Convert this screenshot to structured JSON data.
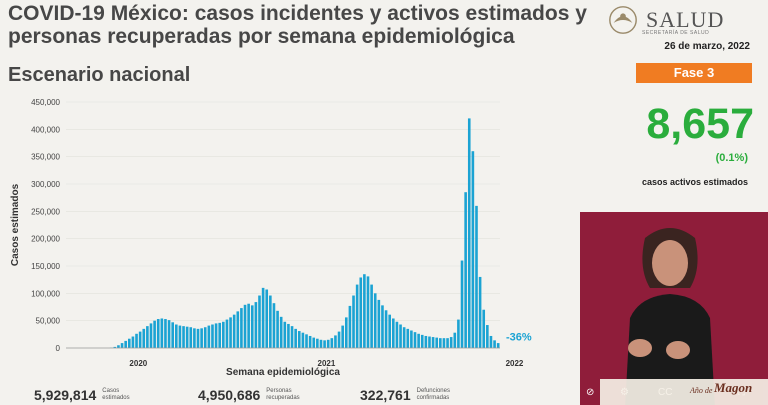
{
  "header": {
    "title": "COVID-19 México: casos incidentes y activos estimados y personas recuperadas por semana epidemiológica",
    "subtitle": "Escenario nacional"
  },
  "logo": {
    "text": "SALUD",
    "subtext": "SECRETARÍA DE SALUD"
  },
  "sidebar": {
    "date": "26 de marzo, 2022",
    "phase": "Fase 3",
    "active_cases": "8,657",
    "active_pct": "(0.1%)",
    "active_caption": "casos activos estimados"
  },
  "footer": {
    "stats": [
      {
        "value": "5,929,814",
        "label": "Casos estimados"
      },
      {
        "value": "4,950,686",
        "label": "Personas recuperadas"
      },
      {
        "value": "322,761",
        "label": "Defunciones confirmadas"
      }
    ],
    "banner_pre": "Año de",
    "banner_main": "Magon"
  },
  "colors": {
    "bar": "#1ba3d3",
    "accent_green": "#2aad3c",
    "phase_orange": "#f07c22",
    "video_bg": "#8f1d3a"
  },
  "chart_data": {
    "type": "bar",
    "xlabel": "Semana epidemiológica",
    "ylabel": "Casos estimados",
    "ylim": [
      0,
      450000
    ],
    "yticks": [
      "0",
      "50,000",
      "100,000",
      "150,000",
      "200,000",
      "250,000",
      "300,000",
      "350,000",
      "400,000",
      "450,000"
    ],
    "year_labels": [
      {
        "label": "2020",
        "index": 20
      },
      {
        "label": "2021",
        "index": 72
      },
      {
        "label": "2022",
        "index": 124
      }
    ],
    "annotation": "-36%",
    "values": [
      0,
      0,
      0,
      0,
      0,
      0,
      0,
      0,
      0,
      0,
      0,
      0,
      500,
      2000,
      5000,
      9000,
      13000,
      17000,
      21000,
      26000,
      30000,
      35000,
      40000,
      45000,
      50000,
      53000,
      54000,
      53000,
      51000,
      47000,
      43000,
      41000,
      40000,
      39000,
      38000,
      36000,
      35000,
      36000,
      38000,
      41000,
      43000,
      45000,
      46000,
      48000,
      52000,
      56000,
      61000,
      67000,
      73000,
      79000,
      81000,
      78000,
      84000,
      96000,
      110000,
      107000,
      96000,
      82000,
      68000,
      57000,
      48000,
      44000,
      40000,
      35000,
      31000,
      28000,
      25000,
      22000,
      19000,
      17000,
      15000,
      14000,
      15000,
      18000,
      23000,
      30000,
      41000,
      56000,
      77000,
      96000,
      116000,
      129000,
      135000,
      131000,
      116000,
      100000,
      88000,
      78000,
      69000,
      61000,
      54000,
      48000,
      43000,
      38000,
      35000,
      32000,
      29000,
      26000,
      24000,
      22000,
      21000,
      20000,
      19000,
      18000,
      18000,
      18000,
      20000,
      28000,
      52000,
      160000,
      285000,
      420000,
      360000,
      260000,
      130000,
      70000,
      42000,
      22000,
      14000,
      9000
    ]
  }
}
